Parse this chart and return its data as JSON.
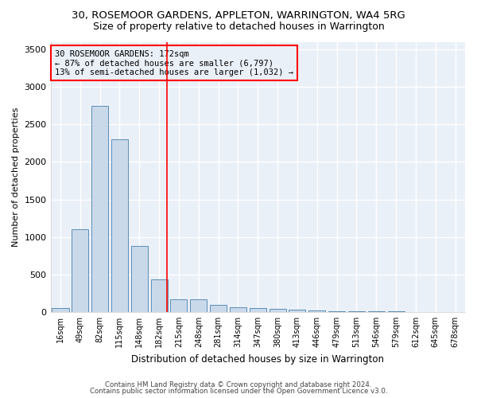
{
  "title": "30, ROSEMOOR GARDENS, APPLETON, WARRINGTON, WA4 5RG",
  "subtitle": "Size of property relative to detached houses in Warrington",
  "xlabel": "Distribution of detached houses by size in Warrington",
  "ylabel": "Number of detached properties",
  "footer1": "Contains HM Land Registry data © Crown copyright and database right 2024.",
  "footer2": "Contains public sector information licensed under the Open Government Licence v3.0.",
  "annotation_line1": "30 ROSEMOOR GARDENS: 172sqm",
  "annotation_line2": "← 87% of detached houses are smaller (6,797)",
  "annotation_line3": "13% of semi-detached houses are larger (1,032) →",
  "bar_color": "#cad9ea",
  "bar_edge_color": "#5b8db8",
  "categories": [
    "16sqm",
    "49sqm",
    "82sqm",
    "115sqm",
    "148sqm",
    "182sqm",
    "215sqm",
    "248sqm",
    "281sqm",
    "314sqm",
    "347sqm",
    "380sqm",
    "413sqm",
    "446sqm",
    "479sqm",
    "513sqm",
    "546sqm",
    "579sqm",
    "612sqm",
    "645sqm",
    "678sqm"
  ],
  "values": [
    50,
    1100,
    2750,
    2300,
    880,
    430,
    170,
    170,
    90,
    65,
    55,
    45,
    35,
    25,
    15,
    12,
    8,
    5,
    3,
    2,
    1
  ],
  "ylim": [
    0,
    3600
  ],
  "yticks": [
    0,
    500,
    1000,
    1500,
    2000,
    2500,
    3000,
    3500
  ],
  "background_color": "#eaf0f8",
  "grid_color": "#ffffff",
  "title_fontsize": 9.5,
  "subtitle_fontsize": 9,
  "red_line_index": 5
}
